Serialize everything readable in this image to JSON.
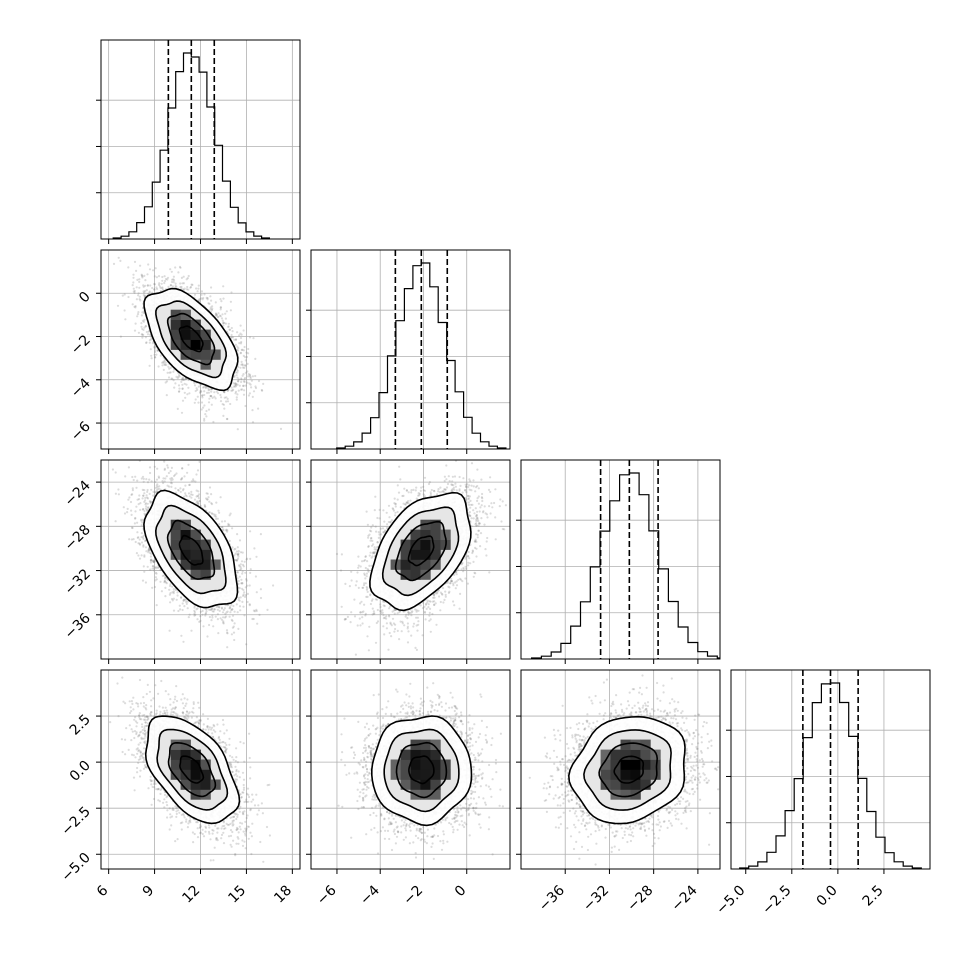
{
  "chart_data": {
    "type": "corner",
    "title": "",
    "grid": true,
    "n_params": 4,
    "params": [
      {
        "label": "",
        "range": [
          5.5,
          18.5
        ],
        "ticks": [
          6,
          9,
          12,
          15,
          18
        ],
        "tick_labels": [
          "6",
          "9",
          "12",
          "15",
          "18"
        ],
        "mean": 11.4,
        "std": 1.5,
        "quantiles": [
          9.9,
          11.4,
          12.9
        ]
      },
      {
        "label": "",
        "range": [
          -7.2,
          2.0
        ],
        "ticks": [
          -6,
          -4,
          -2,
          0
        ],
        "tick_labels": [
          "−6",
          "−4",
          "−2",
          "0"
        ],
        "mean": -2.1,
        "std": 1.15,
        "quantiles": [
          -3.3,
          -2.1,
          -0.9
        ]
      },
      {
        "label": "",
        "range": [
          -40.0,
          -22.0
        ],
        "ticks": [
          -36,
          -32,
          -28,
          -24
        ],
        "tick_labels": [
          "−36",
          "−32",
          "−28",
          "−24"
        ],
        "mean": -30.2,
        "std": 2.6,
        "quantiles": [
          -32.8,
          -30.2,
          -27.6
        ]
      },
      {
        "label": "",
        "range": [
          -5.8,
          5.0
        ],
        "ticks": [
          -5.0,
          -2.5,
          0.0,
          2.5
        ],
        "tick_labels": [
          "−5.0",
          "−2.5",
          "0.0",
          "2.5"
        ],
        "mean": -0.4,
        "std": 1.45,
        "quantiles": [
          -1.9,
          -0.4,
          1.1
        ]
      }
    ],
    "correlations": [
      [
        1.0,
        -0.55,
        -0.5,
        -0.5
      ],
      [
        -0.55,
        1.0,
        0.45,
        0.0
      ],
      [
        -0.5,
        0.45,
        1.0,
        0.15
      ],
      [
        -0.5,
        0.0,
        0.15,
        1.0
      ]
    ],
    "histogram": {
      "style": "step",
      "bins": 20
    },
    "contour_levels_sigma": [
      0.5,
      1.0,
      1.5,
      2.0
    ],
    "colors": {
      "line": "#000000",
      "grid": "#b0b0b0",
      "scatter": "#808080",
      "density": "#000000"
    }
  }
}
